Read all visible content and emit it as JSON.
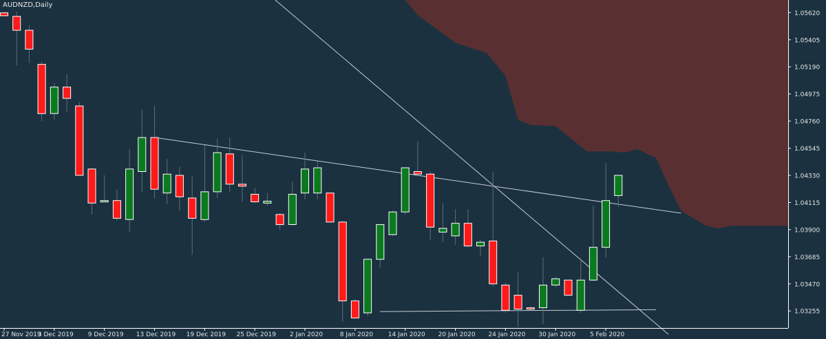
{
  "chart_data": {
    "type": "candlestick",
    "title": "AUDNZD,Daily",
    "colors": {
      "background": "#1b3140",
      "bull": "#0a7a1e",
      "bear": "#ff1a1a",
      "wick": "#5c6f79",
      "cloud": "#5a2f32",
      "trendline": "#c7ced2",
      "axis_text": "#e6e6e6"
    },
    "ylim": [
      1.0312,
      1.0572
    ],
    "y_ticks": [
      "1.05620",
      "1.05405",
      "1.05190",
      "1.04975",
      "1.04760",
      "1.04545",
      "1.04330",
      "1.04115",
      "1.03900",
      "1.03685",
      "1.03470",
      "1.03255"
    ],
    "x_tick_labels": [
      "27 Nov 2019",
      "3 Dec 2019",
      "9 Dec 2019",
      "13 Dec 2019",
      "19 Dec 2019",
      "25 Dec 2019",
      "2 Jan 2020",
      "8 Jan 2020",
      "14 Jan 2020",
      "20 Jan 2020",
      "24 Jan 2020",
      "30 Jan 2020",
      "5 Feb 2020"
    ],
    "x_tick_index": [
      0,
      4,
      8,
      12,
      16,
      20,
      24,
      28,
      32,
      36,
      40,
      44,
      48
    ],
    "candles": [
      {
        "d": "27 Nov 2019",
        "o": 1.05618,
        "h": 1.05625,
        "l": 1.0559,
        "c": 1.05595
      },
      {
        "d": "28 Nov 2019",
        "o": 1.0559,
        "h": 1.05628,
        "l": 1.052,
        "c": 1.0548
      },
      {
        "d": "29 Nov 2019",
        "o": 1.0548,
        "h": 1.0552,
        "l": 1.0522,
        "c": 1.0533
      },
      {
        "d": "2 Dec 2019",
        "o": 1.0521,
        "h": 1.0523,
        "l": 1.0476,
        "c": 1.0482
      },
      {
        "d": "3 Dec 2019",
        "o": 1.0482,
        "h": 1.0506,
        "l": 1.0477,
        "c": 1.0503
      },
      {
        "d": "4 Dec 2019",
        "o": 1.0503,
        "h": 1.0513,
        "l": 1.0483,
        "c": 1.0494
      },
      {
        "d": "5 Dec 2019",
        "o": 1.0488,
        "h": 1.0491,
        "l": 1.0433,
        "c": 1.0433
      },
      {
        "d": "6 Dec 2019",
        "o": 1.0438,
        "h": 1.0439,
        "l": 1.0402,
        "c": 1.0411
      },
      {
        "d": "9 Dec 2019",
        "o": 1.0413,
        "h": 1.0433,
        "l": 1.0412,
        "c": 1.0413
      },
      {
        "d": "10 Dec 2019",
        "o": 1.0413,
        "h": 1.0422,
        "l": 1.0397,
        "c": 1.0399
      },
      {
        "d": "11 Dec 2019",
        "o": 1.0398,
        "h": 1.0454,
        "l": 1.0388,
        "c": 1.0438
      },
      {
        "d": "12 Dec 2019",
        "o": 1.0436,
        "h": 1.0485,
        "l": 1.042,
        "c": 1.0463
      },
      {
        "d": "13 Dec 2019",
        "o": 1.0463,
        "h": 1.0488,
        "l": 1.0415,
        "c": 1.0422
      },
      {
        "d": "16 Dec 2019",
        "o": 1.0419,
        "h": 1.0446,
        "l": 1.041,
        "c": 1.0434
      },
      {
        "d": "17 Dec 2019",
        "o": 1.0433,
        "h": 1.044,
        "l": 1.0405,
        "c": 1.0416
      },
      {
        "d": "18 Dec 2019",
        "o": 1.0415,
        "h": 1.0432,
        "l": 1.037,
        "c": 1.0399
      },
      {
        "d": "19 Dec 2019",
        "o": 1.0398,
        "h": 1.0457,
        "l": 1.0396,
        "c": 1.042
      },
      {
        "d": "20 Dec 2019",
        "o": 1.042,
        "h": 1.0462,
        "l": 1.0415,
        "c": 1.0451
      },
      {
        "d": "23 Dec 2019",
        "o": 1.045,
        "h": 1.0463,
        "l": 1.042,
        "c": 1.0426
      },
      {
        "d": "24 Dec 2019",
        "o": 1.0426,
        "h": 1.0449,
        "l": 1.0412,
        "c": 1.04245
      },
      {
        "d": "25 Dec 2019",
        "o": 1.0418,
        "h": 1.0423,
        "l": 1.0411,
        "c": 1.0412
      },
      {
        "d": "26 Dec 2019",
        "o": 1.0411,
        "h": 1.0419,
        "l": 1.0409,
        "c": 1.04125
      },
      {
        "d": "27 Dec 2019",
        "o": 1.0402,
        "h": 1.0403,
        "l": 1.039,
        "c": 1.0394
      },
      {
        "d": "30 Dec 2019",
        "o": 1.0394,
        "h": 1.0428,
        "l": 1.0393,
        "c": 1.0418
      },
      {
        "d": "31 Dec 2019",
        "o": 1.0419,
        "h": 1.0451,
        "l": 1.0414,
        "c": 1.0438
      },
      {
        "d": "2 Jan 2020",
        "o": 1.0419,
        "h": 1.0444,
        "l": 1.0414,
        "c": 1.0439
      },
      {
        "d": "3 Jan 2020",
        "o": 1.0419,
        "h": 1.0419,
        "l": 1.0396,
        "c": 1.0396
      },
      {
        "d": "6 Jan 2020",
        "o": 1.0396,
        "h": 1.0397,
        "l": 1.0317,
        "c": 1.03335
      },
      {
        "d": "7 Jan 2020",
        "o": 1.03335,
        "h": 1.0335,
        "l": 1.032,
        "c": 1.032
      },
      {
        "d": "8 Jan 2020",
        "o": 1.0324,
        "h": 1.0367,
        "l": 1.03215,
        "c": 1.03665
      },
      {
        "d": "9 Jan 2020",
        "o": 1.03665,
        "h": 1.0394,
        "l": 1.036,
        "c": 1.0394
      },
      {
        "d": "10 Jan 2020",
        "o": 1.0386,
        "h": 1.0405,
        "l": 1.0385,
        "c": 1.0404
      },
      {
        "d": "13 Jan 2020",
        "o": 1.0404,
        "h": 1.0439,
        "l": 1.0402,
        "c": 1.0439
      },
      {
        "d": "14 Jan 2020",
        "o": 1.0436,
        "h": 1.046,
        "l": 1.0435,
        "c": 1.0434
      },
      {
        "d": "15 Jan 2020",
        "o": 1.0434,
        "h": 1.0436,
        "l": 1.0382,
        "c": 1.0392
      },
      {
        "d": "16 Jan 2020",
        "o": 1.0388,
        "h": 1.0411,
        "l": 1.038,
        "c": 1.0391
      },
      {
        "d": "17 Jan 2020",
        "o": 1.0385,
        "h": 1.0406,
        "l": 1.0378,
        "c": 1.0395
      },
      {
        "d": "20 Jan 2020",
        "o": 1.0395,
        "h": 1.0406,
        "l": 1.0376,
        "c": 1.0377
      },
      {
        "d": "21 Jan 2020",
        "o": 1.0377,
        "h": 1.0382,
        "l": 1.0369,
        "c": 1.038
      },
      {
        "d": "22 Jan 2020",
        "o": 1.0381,
        "h": 1.0436,
        "l": 1.0345,
        "c": 1.0347
      },
      {
        "d": "23 Jan 2020",
        "o": 1.0346,
        "h": 1.0348,
        "l": 1.0324,
        "c": 1.0326
      },
      {
        "d": "24 Jan 2020",
        "o": 1.0338,
        "h": 1.0356,
        "l": 1.0313,
        "c": 1.0327
      },
      {
        "d": "27 Jan 2020",
        "o": 1.0328,
        "h": 1.0329,
        "l": 1.0326,
        "c": 1.0327
      },
      {
        "d": "28 Jan 2020",
        "o": 1.0328,
        "h": 1.0368,
        "l": 1.0315,
        "c": 1.0346
      },
      {
        "d": "29 Jan 2020",
        "o": 1.0346,
        "h": 1.0353,
        "l": 1.0344,
        "c": 1.0351
      },
      {
        "d": "30 Jan 2020",
        "o": 1.035,
        "h": 1.035,
        "l": 1.0338,
        "c": 1.0338
      },
      {
        "d": "31 Jan 2020",
        "o": 1.0326,
        "h": 1.0367,
        "l": 1.0324,
        "c": 1.035
      },
      {
        "d": "3 Feb 2020",
        "o": 1.035,
        "h": 1.0409,
        "l": 1.0349,
        "c": 1.0376
      },
      {
        "d": "4 Feb 2020",
        "o": 1.0376,
        "h": 1.0443,
        "l": 1.0368,
        "c": 1.0413
      },
      {
        "d": "5 Feb 2020",
        "o": 1.0417,
        "h": 1.0433,
        "l": 1.0408,
        "c": 1.0433
      }
    ],
    "trendlines": [
      {
        "from": {
          "i": 12.0,
          "v": 1.0463
        },
        "to": {
          "i": 54.0,
          "v": 1.0403
        }
      },
      {
        "from": {
          "i": 19.5,
          "v": 1.059
        },
        "to": {
          "i": 53.0,
          "v": 1.0307
        }
      },
      {
        "from": {
          "i": 30.0,
          "v": 1.0325
        },
        "to": {
          "i": 52.0,
          "v": 1.03265
        }
      }
    ],
    "cloud_top": [
      {
        "i": 30,
        "v": 1.06
      },
      {
        "i": 32.0,
        "v": 1.06
      },
      {
        "i": 33.0,
        "v": 1.056
      },
      {
        "i": 36.0,
        "v": 1.0538
      },
      {
        "i": 38.5,
        "v": 1.053
      },
      {
        "i": 40.0,
        "v": 1.0512
      },
      {
        "i": 41.0,
        "v": 1.0477
      },
      {
        "i": 42.0,
        "v": 1.0473
      },
      {
        "i": 44.0,
        "v": 1.0472
      },
      {
        "i": 45.0,
        "v": 1.0464
      },
      {
        "i": 46.5,
        "v": 1.0452
      },
      {
        "i": 48.5,
        "v": 1.0452
      },
      {
        "i": 49.5,
        "v": 1.0451
      },
      {
        "i": 50.5,
        "v": 1.0454
      },
      {
        "i": 51.5,
        "v": 1.0449
      },
      {
        "i": 52.0,
        "v": 1.0447
      },
      {
        "i": 53.0,
        "v": 1.0425
      },
      {
        "i": 54.0,
        "v": 1.0405
      },
      {
        "i": 56.0,
        "v": 1.0393
      },
      {
        "i": 57.0,
        "v": 1.0391
      },
      {
        "i": 58.0,
        "v": 1.0393
      },
      {
        "i": 60,
        "v": 1.0393
      }
    ]
  }
}
